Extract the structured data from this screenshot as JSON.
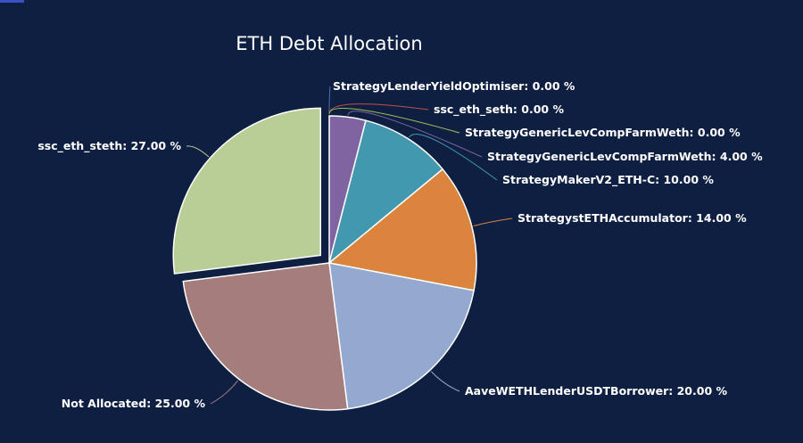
{
  "chart_data": {
    "type": "pie",
    "title": "ETH Debt Allocation",
    "slices": [
      {
        "name": "StrategyLenderYieldOptimiser",
        "value": 0.0,
        "label": "StrategyLenderYieldOptimiser: 0.00 %",
        "color": "#4c6fb3"
      },
      {
        "name": "ssc_eth_seth",
        "value": 0.0,
        "label": "ssc_eth_seth: 0.00 %",
        "color": "#c0504d"
      },
      {
        "name": "StrategyGenericLevCompFarmWeth",
        "value": 0.0,
        "label": "StrategyGenericLevCompFarmWeth: 0.00 %",
        "color": "#9bbb59"
      },
      {
        "name": "StrategyGenericLevCompFarmWeth",
        "value": 4.0,
        "label": "StrategyGenericLevCompFarmWeth: 4.00 %",
        "color": "#8064a2"
      },
      {
        "name": "StrategyMakerV2_ETH-C",
        "value": 10.0,
        "label": "StrategyMakerV2_ETH-C: 10.00 %",
        "color": "#4198af"
      },
      {
        "name": "StrategystETHAccumulator",
        "value": 14.0,
        "label": "StrategystETHAccumulator: 14.00 %",
        "color": "#db843d"
      },
      {
        "name": "AaveWETHLenderUSDTBorrower",
        "value": 20.0,
        "label": "AaveWETHLenderUSDTBorrower: 20.00 %",
        "color": "#93a9cf"
      },
      {
        "name": "Not Allocated",
        "value": 25.0,
        "label": "Not Allocated: 25.00 %",
        "color": "#a47d7c"
      },
      {
        "name": "ssc_eth_steth",
        "value": 27.0,
        "label": "ssc_eth_steth: 27.00 %",
        "color": "#b9cd96"
      }
    ],
    "exploded": "ssc_eth_steth",
    "legend": "none",
    "data_labels": "outside with connector lines"
  }
}
